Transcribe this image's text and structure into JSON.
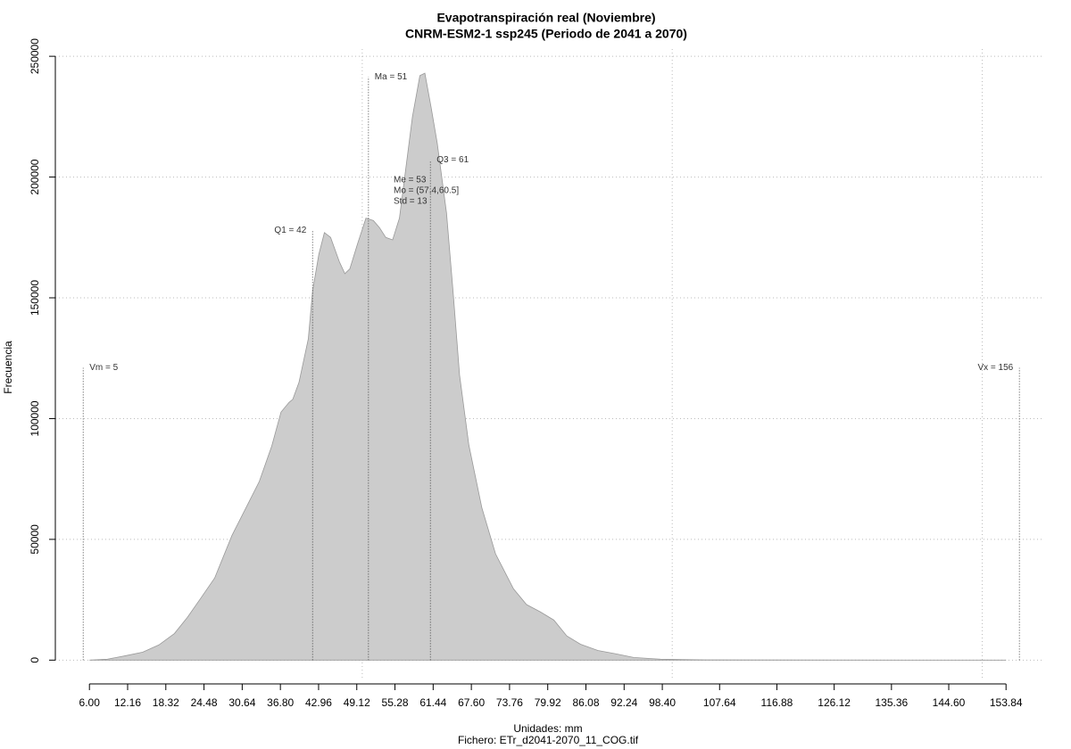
{
  "chart_data": {
    "type": "area",
    "title": "Evapotranspiración real (Noviembre)",
    "subtitle": "CNRM-ESM2-1 ssp245 (Periodo de 2041 a 2070)",
    "xlabel": "Unidades: mm",
    "note": "Fichero: ETr_d2041-2070_11_COG.tif",
    "ylabel": "Frecuencia",
    "color": "#cccccc",
    "grid": true,
    "x": [
      6,
      8.9,
      11.8,
      14.6,
      17.2,
      19.7,
      21.8,
      24,
      26.2,
      29,
      31.2,
      33.4,
      35.4,
      36.9,
      38.2,
      38.8,
      39.8,
      41.3,
      42,
      43,
      43.9,
      44.9,
      46.3,
      47.2,
      48,
      49.2,
      50.6,
      51.8,
      52.8,
      53.8,
      54.9,
      56,
      57.1,
      58.1,
      59.3,
      60.1,
      61.1,
      62.1,
      63.6,
      64.7,
      65.7,
      67.2,
      69.3,
      71.5,
      74.4,
      76.5,
      78.7,
      80.9,
      83,
      85.2,
      88,
      90.9,
      93.8,
      98.1,
      105.3,
      153.84
    ],
    "series": [
      {
        "name": "Frecuencia",
        "values": [
          0,
          400,
          1800,
          3300,
          6300,
          11000,
          17700,
          25800,
          34000,
          51700,
          62800,
          74000,
          88600,
          102700,
          106700,
          108000,
          115000,
          133000,
          153000,
          168000,
          177000,
          175000,
          165000,
          160000,
          162000,
          172000,
          183000,
          182000,
          179000,
          175000,
          174000,
          183000,
          205000,
          225000,
          242000,
          243000,
          229000,
          214000,
          185000,
          151000,
          118000,
          89000,
          63000,
          44000,
          29500,
          23000,
          20000,
          16600,
          10000,
          6600,
          4000,
          2600,
          1100,
          400,
          100,
          0
        ]
      }
    ],
    "xlim": [
      0.5,
      160
    ],
    "ylim": [
      -8000,
      253000
    ],
    "xticks": [
      {
        "value": 6,
        "label": "6.00"
      },
      12.16,
      {
        "value": 18.32,
        "label": "18.32"
      },
      24.48,
      30.64,
      {
        "value": 36.8,
        "label": "36.80"
      },
      42.96,
      49.12,
      55.28,
      61.44,
      {
        "value": 67.6,
        "label": "67.60"
      },
      73.76,
      79.92,
      86.08,
      92.24,
      {
        "value": 98.4,
        "label": "98.40"
      },
      107.64,
      116.88,
      126.12,
      135.36,
      {
        "value": 144.6,
        "label": "144.60"
      },
      153.84
    ],
    "xgrid": [
      50,
      100,
      150
    ],
    "yticks": [
      0,
      50000,
      100000,
      150000,
      200000,
      250000
    ],
    "annotations": [
      {
        "label": "Vm = 5",
        "x": 5,
        "y": 121000,
        "side": "right"
      },
      {
        "label": "Q1 = 42",
        "x": 42,
        "y": 178000,
        "side": "left"
      },
      {
        "label": "Ma = 51",
        "x": 51,
        "y": 241500,
        "side": "right"
      },
      {
        "label": "Q3 = 61",
        "x": 61,
        "y": 207000,
        "side": "right"
      },
      {
        "label": "Vx = 156",
        "x": 156,
        "y": 121000,
        "side": "left"
      }
    ],
    "stats": [
      "Me = 53",
      "Mo = (57.4,60.5]",
      "Std = 13"
    ]
  }
}
